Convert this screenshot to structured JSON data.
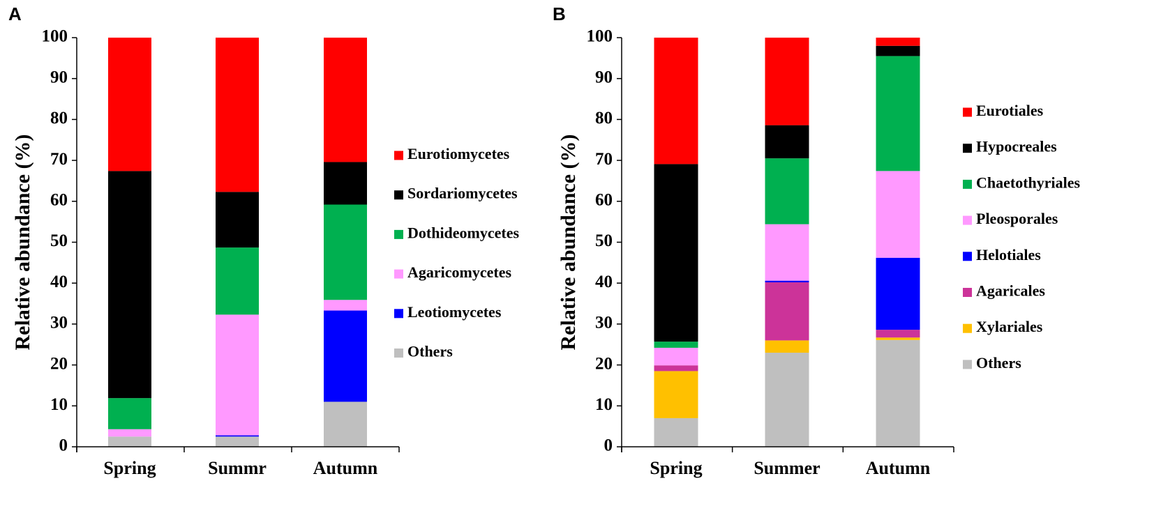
{
  "chart_data": [
    {
      "panel": "A",
      "type": "bar",
      "stacked": true,
      "ylabel": "Relative abundance (%)",
      "xlabel": "",
      "ylim": [
        0,
        100
      ],
      "yticks": [
        0,
        10,
        20,
        30,
        40,
        50,
        60,
        70,
        80,
        90,
        100
      ],
      "categories": [
        "Spring",
        "Summr",
        "Autumn"
      ],
      "series": [
        {
          "name": "Others",
          "color": "#bfbfbf",
          "values": [
            2.5,
            2.5,
            11
          ]
        },
        {
          "name": "Leotiomycetes",
          "color": "#0000ff",
          "values": [
            0,
            0.3,
            22.3
          ]
        },
        {
          "name": "Agaricomycetes",
          "color": "#ff99ff",
          "values": [
            1.8,
            29.5,
            2.6
          ]
        },
        {
          "name": "Dothideomycetes",
          "color": "#00b050",
          "values": [
            7.6,
            16.4,
            23.3
          ]
        },
        {
          "name": "Sordariomycetes",
          "color": "#000000",
          "values": [
            55.5,
            13.6,
            10.4
          ]
        },
        {
          "name": "Eurotiomycetes",
          "color": "#ff0000",
          "values": [
            32.6,
            37.7,
            30.4
          ]
        }
      ],
      "legend_order": [
        "Eurotiomycetes",
        "Sordariomycetes",
        "Dothideomycetes",
        "Agaricomycetes",
        "Leotiomycetes",
        "Others"
      ],
      "legend_position": "right"
    },
    {
      "panel": "B",
      "type": "bar",
      "stacked": true,
      "ylabel": "Relative abundance (%)",
      "xlabel": "",
      "ylim": [
        0,
        100
      ],
      "yticks": [
        0,
        10,
        20,
        30,
        40,
        50,
        60,
        70,
        80,
        90,
        100
      ],
      "categories": [
        "Spring",
        "Summer",
        "Autumn"
      ],
      "series": [
        {
          "name": "Others",
          "color": "#bfbfbf",
          "values": [
            7,
            23,
            26.1
          ]
        },
        {
          "name": "Xylariales",
          "color": "#ffc000",
          "values": [
            11.5,
            3,
            0.6
          ]
        },
        {
          "name": "Agaricales",
          "color": "#cc3399",
          "values": [
            1.4,
            14.2,
            1.9
          ]
        },
        {
          "name": "Helotiales",
          "color": "#0000ff",
          "values": [
            0,
            0.4,
            17.6
          ]
        },
        {
          "name": "Pleosporales",
          "color": "#ff99ff",
          "values": [
            4.3,
            13.8,
            21.2
          ]
        },
        {
          "name": "Chaetothyriales",
          "color": "#00b050",
          "values": [
            1.5,
            16.1,
            28.1
          ]
        },
        {
          "name": "Hypocreales",
          "color": "#000000",
          "values": [
            43.4,
            8.1,
            2.5
          ]
        },
        {
          "name": "Eurotiales",
          "color": "#ff0000",
          "values": [
            30.9,
            21.4,
            2
          ]
        }
      ],
      "legend_order": [
        "Eurotiales",
        "Hypocreales",
        "Chaetothyriales",
        "Pleosporales",
        "Helotiales",
        "Agaricales",
        "Xylariales",
        "Others"
      ],
      "legend_position": "right"
    }
  ]
}
